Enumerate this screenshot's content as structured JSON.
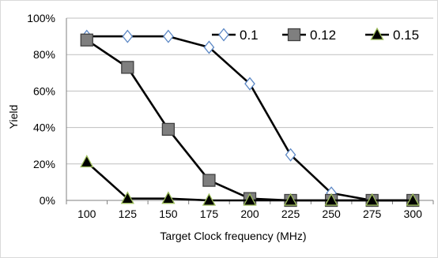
{
  "chart_data": {
    "type": "line",
    "title": "",
    "xlabel": "Target Clock frequency (MHz)",
    "ylabel": "Yield",
    "categories": [
      "100",
      "125",
      "150",
      "175",
      "200",
      "225",
      "250",
      "275",
      "300"
    ],
    "ylim": [
      0,
      100
    ],
    "y_ticks": [
      "0%",
      "20%",
      "40%",
      "60%",
      "80%",
      "100%"
    ],
    "grid": "horizontal",
    "legend_position": "top-right",
    "series": [
      {
        "name": "0.1",
        "marker": "diamond",
        "color": "#000000",
        "fill": "#ffffff",
        "edge": "#5b87c5",
        "values": [
          90,
          90,
          90,
          84,
          64,
          25,
          4,
          0,
          0
        ]
      },
      {
        "name": "0.12",
        "marker": "square",
        "color": "#000000",
        "fill": "#7f7f7f",
        "edge": "#404040",
        "values": [
          88,
          73,
          39,
          11,
          1,
          0,
          0,
          0,
          0
        ]
      },
      {
        "name": "0.15",
        "marker": "triangle",
        "color": "#000000",
        "fill": "#000000",
        "edge": "#9bbb59",
        "values": [
          21,
          1,
          1,
          0,
          0,
          0,
          0,
          0,
          0
        ]
      }
    ]
  }
}
